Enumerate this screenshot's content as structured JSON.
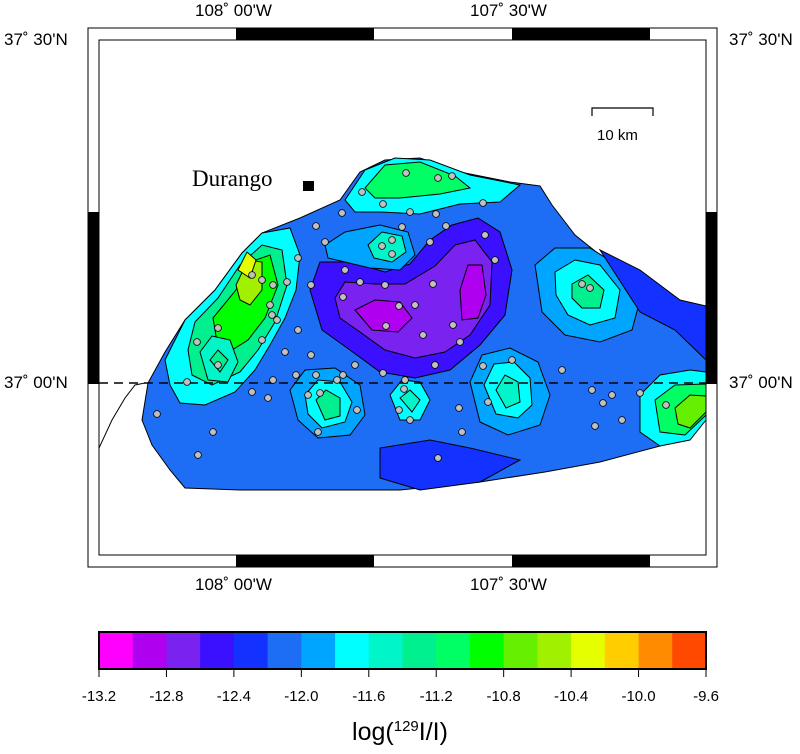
{
  "map": {
    "longitude_labels": [
      "108˚ 00'W",
      "107˚ 30'W"
    ],
    "latitude_labels": [
      "37˚ 30'N",
      "37˚ 00'N"
    ],
    "city": {
      "name": "Durango"
    },
    "scale_bar": {
      "label": "10 km"
    },
    "reference_line": "37˚ 00'N"
  },
  "colorbar": {
    "title_prefix": "log(",
    "title_sup": "129",
    "title_suffix": "I/I)",
    "tick_labels": [
      "-13.2",
      "-12.8",
      "-12.4",
      "-12.0",
      "-11.6",
      "-11.2",
      "-10.8",
      "-10.4",
      "-10.0",
      "-9.6"
    ],
    "range": [
      -13.2,
      -9.6
    ],
    "step": 0.2,
    "colors": [
      "#ff00ff",
      "#b000f0",
      "#7a22f0",
      "#3a10ff",
      "#1432ff",
      "#1e6ef5",
      "#00a5ff",
      "#00ffff",
      "#00f5c8",
      "#00f090",
      "#00ff64",
      "#00ff00",
      "#64f000",
      "#a0f000",
      "#e6ff00",
      "#ffcd00",
      "#ff8c00",
      "#ff4800"
    ]
  }
}
